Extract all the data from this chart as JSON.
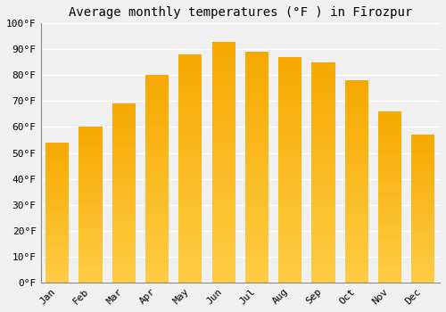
{
  "title": "Average monthly temperatures (°F ) in Fīrozpur",
  "months": [
    "Jan",
    "Feb",
    "Mar",
    "Apr",
    "May",
    "Jun",
    "Jul",
    "Aug",
    "Sep",
    "Oct",
    "Nov",
    "Dec"
  ],
  "values": [
    54,
    60,
    69,
    80,
    88,
    93,
    89,
    87,
    85,
    78,
    66,
    57
  ],
  "bar_color_top": "#F5A800",
  "bar_color_bottom": "#FFCC44",
  "ylim": [
    0,
    100
  ],
  "yticks": [
    0,
    10,
    20,
    30,
    40,
    50,
    60,
    70,
    80,
    90,
    100
  ],
  "ytick_labels": [
    "0°F",
    "10°F",
    "20°F",
    "30°F",
    "40°F",
    "50°F",
    "60°F",
    "70°F",
    "80°F",
    "90°F",
    "100°F"
  ],
  "background_color": "#f0f0f0",
  "grid_color": "#ffffff",
  "title_fontsize": 10,
  "tick_fontsize": 8,
  "font_family": "monospace",
  "bar_width": 0.7
}
